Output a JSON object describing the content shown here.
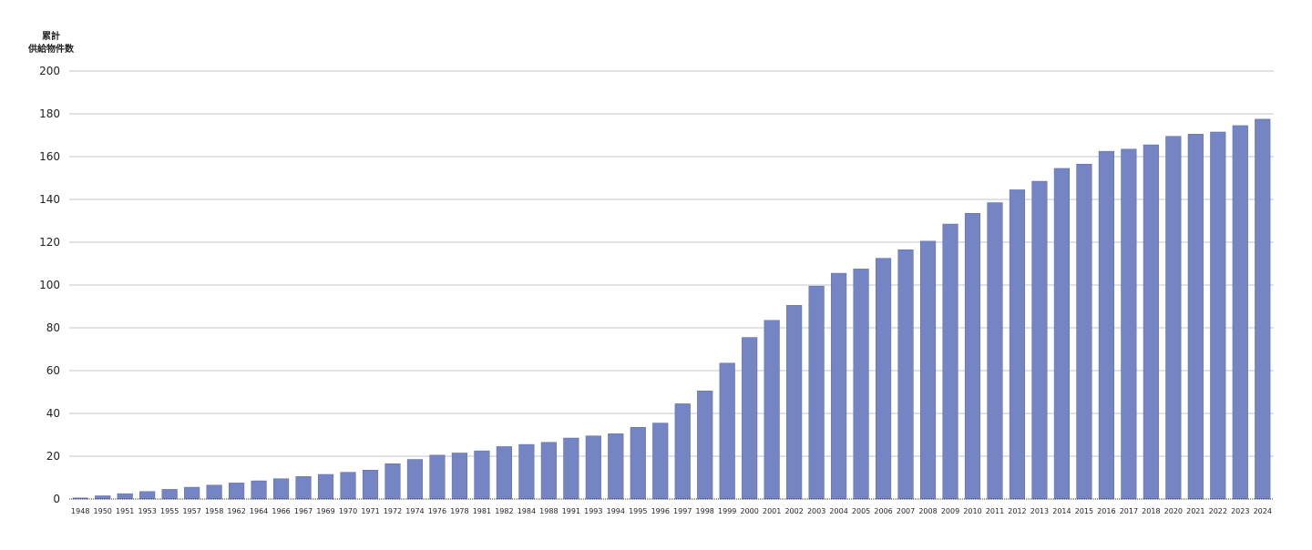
{
  "chart_data": {
    "type": "bar",
    "ylabel_lines": [
      "累計",
      "供給物件数"
    ],
    "ylim": [
      0,
      200
    ],
    "yticks": [
      0,
      20,
      40,
      60,
      80,
      100,
      120,
      140,
      160,
      180,
      200
    ],
    "grid": true,
    "bar_color": "#7584c2",
    "grid_color": "#c0c4cc",
    "categories": [
      "1948",
      "1950",
      "1951",
      "1953",
      "1955",
      "1957",
      "1958",
      "1962",
      "1964",
      "1966",
      "1967",
      "1969",
      "1970",
      "1971",
      "1972",
      "1974",
      "1976",
      "1978",
      "1981",
      "1982",
      "1984",
      "1988",
      "1991",
      "1993",
      "1994",
      "1995",
      "1996",
      "1997",
      "1998",
      "1999",
      "2000",
      "2001",
      "2002",
      "2003",
      "2004",
      "2005",
      "2006",
      "2007",
      "2008",
      "2009",
      "2010",
      "2011",
      "2012",
      "2013",
      "2014",
      "2015",
      "2016",
      "2017",
      "2018",
      "2020",
      "2021",
      "2022",
      "2023",
      "2024"
    ],
    "values": [
      0.5,
      1.5,
      2.5,
      3.5,
      4.5,
      5.5,
      6.5,
      7.5,
      8.5,
      9.5,
      10.5,
      11.5,
      12.5,
      13.5,
      16.5,
      18.5,
      20.5,
      21.5,
      22.5,
      24.5,
      25.5,
      26.5,
      28.5,
      29.5,
      30.5,
      33.5,
      35.5,
      44.5,
      50.5,
      63.5,
      75.5,
      83.5,
      90.5,
      99.5,
      105.5,
      107.5,
      112.5,
      116.5,
      120.5,
      128.5,
      133.5,
      138.5,
      144.5,
      148.5,
      154.5,
      156.5,
      162.5,
      163.5,
      165.5,
      169.5,
      170.5,
      171.5,
      174.5,
      177.5
    ]
  }
}
